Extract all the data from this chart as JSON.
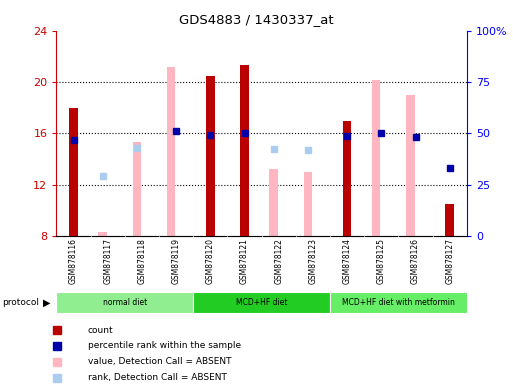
{
  "title": "GDS4883 / 1430337_at",
  "samples": [
    "GSM878116",
    "GSM878117",
    "GSM878118",
    "GSM878119",
    "GSM878120",
    "GSM878121",
    "GSM878122",
    "GSM878123",
    "GSM878124",
    "GSM878125",
    "GSM878126",
    "GSM878127"
  ],
  "count_values": [
    18.0,
    null,
    null,
    null,
    20.5,
    21.3,
    null,
    null,
    17.0,
    null,
    null,
    10.5
  ],
  "percentile_values": [
    15.5,
    null,
    null,
    16.2,
    15.9,
    16.0,
    null,
    null,
    15.8,
    16.0,
    15.7,
    null
  ],
  "pink_bar_values": [
    null,
    8.3,
    15.3,
    21.2,
    null,
    null,
    13.2,
    13.0,
    null,
    20.2,
    19.0,
    null
  ],
  "light_blue_sq_values": [
    null,
    12.7,
    14.9,
    null,
    null,
    null,
    14.8,
    14.7,
    null,
    null,
    null,
    null
  ],
  "dark_blue_sq_values": [
    null,
    null,
    null,
    null,
    null,
    null,
    null,
    null,
    null,
    null,
    null,
    13.3
  ],
  "ylim": [
    8,
    24
  ],
  "yticks": [
    8,
    12,
    16,
    20,
    24
  ],
  "right_ylim": [
    0,
    100
  ],
  "right_yticks": [
    0,
    25,
    50,
    75,
    100
  ],
  "right_yticklabels": [
    "0",
    "25",
    "50",
    "75",
    "100%"
  ],
  "protocols": [
    {
      "label": "normal diet",
      "start": 0,
      "end": 4,
      "color": "#90EE90"
    },
    {
      "label": "MCD+HF diet",
      "start": 4,
      "end": 8,
      "color": "#22CC22"
    },
    {
      "label": "MCD+HF diet with metformin",
      "start": 8,
      "end": 12,
      "color": "#66EE66"
    }
  ],
  "legend_items": [
    {
      "label": "count",
      "color": "#BB0000"
    },
    {
      "label": "percentile rank within the sample",
      "color": "#0000AA"
    },
    {
      "label": "value, Detection Call = ABSENT",
      "color": "#FFB6C1"
    },
    {
      "label": "rank, Detection Call = ABSENT",
      "color": "#AACCEE"
    }
  ],
  "count_color": "#BB0000",
  "percentile_color": "#0000AA",
  "pink_color": "#FFB6C1",
  "light_blue_color": "#AACCEE",
  "dark_blue_color": "#0000AA",
  "bg_color": "#FFFFFF",
  "left_axis_color": "#CC0000",
  "right_axis_color": "#0000FF",
  "sample_bg_color": "#D3D3D3",
  "grid_dotted_color": "#000000"
}
